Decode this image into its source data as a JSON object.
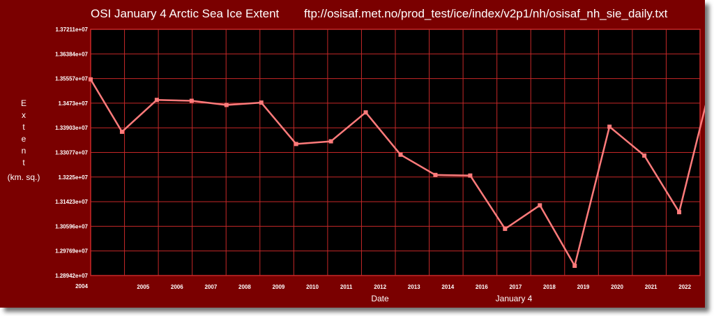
{
  "colors": {
    "frame": "#7a0000",
    "plot_background": "#000000",
    "grid": "#c62828",
    "line": "#ff7b7b",
    "text": "#ffffff"
  },
  "chart_data": {
    "type": "line",
    "title": "OSI January 4 Arctic Sea Ice Extent",
    "source": "ftp://osisaf.met.no/prod_test/ice/index/v2p1/nh/osisaf_nh_sie_daily.txt",
    "xlabel": "Date",
    "xlabel2": "January 4",
    "ylabel_letters": [
      "E",
      "x",
      "t",
      "e",
      "n",
      "t"
    ],
    "ylabel_unit": "(km. sq.)",
    "ylim": [
      12894200,
      13721100
    ],
    "yticks": [
      "1.37211e+07",
      "1.36384e+07",
      "1.35557e+07",
      "1.3473e+07",
      "1.33903e+07",
      "1.33077e+07",
      "1.3225e+07",
      "1.31423e+07",
      "1.30596e+07",
      "1.29769e+07",
      "1.28942e+07"
    ],
    "xlim": [
      2004.0,
      2021.5
    ],
    "xticks": [
      "2004",
      "2005",
      "2006",
      "2007",
      "2008",
      "2009",
      "2010",
      "2011",
      "2012",
      "2013",
      "2014",
      "2016",
      "2017",
      "2018",
      "2019",
      "2020",
      "2021",
      "2022"
    ],
    "grid": true,
    "legend": "none",
    "series": [
      {
        "x": [
          2004.0,
          2004.9,
          2005.9,
          2006.9,
          2007.9,
          2008.9,
          2009.9,
          2010.9,
          2011.9,
          2012.9,
          2013.9,
          2014.9,
          2015.9,
          2016.9,
          2017.9,
          2018.9,
          2019.9,
          2020.9,
          2021.9
        ],
        "y": [
          13553000,
          13377000,
          13484000,
          13481000,
          13467000,
          13475000,
          13336000,
          13345000,
          13442000,
          13300000,
          13232000,
          13230000,
          13051000,
          13130000,
          12927000,
          13394000,
          13297000,
          13107000,
          13579000
        ]
      }
    ]
  }
}
